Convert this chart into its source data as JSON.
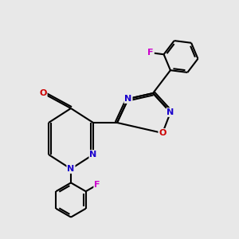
{
  "background_color": "#e8e8e8",
  "bond_color": "#000000",
  "bond_width": 1.5,
  "atom_colors": {
    "N": "#1a00cc",
    "O": "#cc0000",
    "F": "#cc00cc"
  },
  "font_size": 8.0,
  "fig_size": [
    3.0,
    3.0
  ],
  "dpi": 100,
  "xlim": [
    0,
    10
  ],
  "ylim": [
    0,
    10
  ]
}
